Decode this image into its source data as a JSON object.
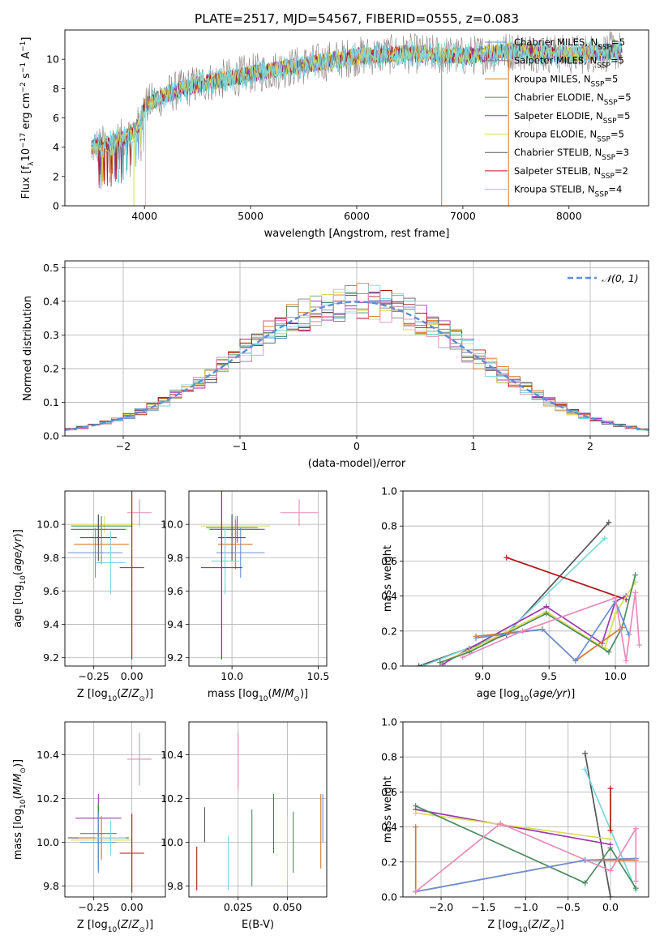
{
  "title": "PLATE=2517, MJD=54567, FIBERID=0555, z=0.083",
  "colors": {
    "MILES_C": "#6a8fd6",
    "MILES_S": "#8c7d7d",
    "MILES_K": "#d6792a",
    "ELODIE_C": "#4f8a60",
    "ELODIE_S": "#9b38b0",
    "ELODIE_K": "#d9dd55",
    "STELIB_C": "#555555",
    "STELIB_S": "#b01818",
    "STELIB_K": "#7ad6dc",
    "grid": "#b0b0b0",
    "gauss": "#5b8ed6",
    "pink": "#e88aba"
  },
  "chart_data": [
    {
      "id": "spectrum",
      "type": "line",
      "xlabel": "wavelength [Angstrom, rest frame]",
      "ylabel": "Flux [f",
      "xlim": [
        3250,
        8750
      ],
      "ylim": [
        0,
        12
      ],
      "xticks": [
        4000,
        5000,
        6000,
        7000,
        8000
      ],
      "yticks": [
        0,
        2,
        4,
        6,
        8,
        10
      ],
      "grid": false,
      "legend_placement": "right",
      "legend": [
        {
          "label": "Chabrier MILES, N",
          "n": "=5",
          "key": "MILES_C"
        },
        {
          "label": "Salpeter MILES, N",
          "n": "=5",
          "key": "MILES_S"
        },
        {
          "label": "Kroupa MILES, N",
          "n": "=5",
          "key": "MILES_K"
        },
        {
          "label": "Chabrier ELODIE, N",
          "n": "=5",
          "key": "ELODIE_C"
        },
        {
          "label": "Salpeter ELODIE, N",
          "n": "=5",
          "key": "ELODIE_S"
        },
        {
          "label": "Kroupa ELODIE, N",
          "n": "=5",
          "key": "ELODIE_K"
        },
        {
          "label": "Chabrier STELIB, N",
          "n": "=3",
          "key": "STELIB_C"
        },
        {
          "label": "Salpeter STELIB, N",
          "n": "=2",
          "key": "STELIB_S"
        },
        {
          "label": "Kroupa STELIB, N",
          "n": "=4",
          "key": "STELIB_K"
        }
      ],
      "continuum": [
        [
          3500,
          4.0
        ],
        [
          3650,
          4.2
        ],
        [
          3800,
          4.6
        ],
        [
          3950,
          5.5
        ],
        [
          4000,
          6.8
        ],
        [
          4200,
          7.6
        ],
        [
          4500,
          8.3
        ],
        [
          5000,
          9.0
        ],
        [
          5500,
          9.6
        ],
        [
          6000,
          10.2
        ],
        [
          6500,
          10.4
        ],
        [
          7000,
          10.2
        ],
        [
          7500,
          10.6
        ],
        [
          8000,
          10.3
        ],
        [
          8500,
          10.6
        ]
      ],
      "spikes": [
        {
          "x": 3900,
          "y": 0
        },
        {
          "x": 4010,
          "y": 0
        },
        {
          "x": 6800,
          "y": 0
        },
        {
          "x": 7430,
          "y": 0
        }
      ]
    },
    {
      "id": "residual-hist",
      "type": "line",
      "xlabel": "(data-model)/error",
      "ylabel": "Normed distribution",
      "xlim": [
        -2.5,
        2.5
      ],
      "ylim": [
        0,
        0.52
      ],
      "xticks": [
        -2,
        -1,
        0,
        1,
        2
      ],
      "yticks": [
        0.0,
        0.1,
        0.2,
        0.3,
        0.4,
        0.5
      ],
      "grid": true,
      "legend_placement": "top-right",
      "gauss_legend": "𝒩(0, 1)"
    },
    {
      "id": "age-vs-Z",
      "type": "scatter",
      "xlabel": "Z [log",
      "ylabel": "age  [log",
      "xlim": [
        -0.44,
        0.22
      ],
      "ylim": [
        9.15,
        10.2
      ],
      "xticks": [
        -0.25,
        0.0
      ],
      "yticks": [
        9.2,
        9.4,
        9.6,
        9.8,
        10.0
      ],
      "points": [
        {
          "x": 0.05,
          "y": 10.07,
          "dx": 0.08,
          "dy": 0.08,
          "key": "pink"
        },
        {
          "x": -0.18,
          "y": 10.0,
          "dx": 0.22,
          "dy": 0.05,
          "key": "ELODIE_K"
        },
        {
          "x": -0.2,
          "y": 9.99,
          "dx": 0.2,
          "dy": 0.06,
          "key": "ELODIE_C"
        },
        {
          "x": -0.22,
          "y": 9.97,
          "dx": 0.18,
          "dy": 0.08,
          "key": "ELODIE_S"
        },
        {
          "x": -0.2,
          "y": 9.88,
          "dx": 0.18,
          "dy": 0.12,
          "key": "MILES_K"
        },
        {
          "x": -0.24,
          "y": 9.83,
          "dx": 0.18,
          "dy": 0.15,
          "key": "MILES_C"
        },
        {
          "x": -0.22,
          "y": 9.92,
          "dx": 0.12,
          "dy": 0.14,
          "key": "STELIB_C"
        },
        {
          "x": -0.14,
          "y": 9.77,
          "dx": 0.1,
          "dy": 0.19,
          "key": "STELIB_K"
        },
        {
          "x": 0.0,
          "y": 9.74,
          "dx": 0.08,
          "dy": 0.55,
          "key": "STELIB_S"
        }
      ]
    },
    {
      "id": "age-vs-mass",
      "type": "scatter",
      "xlabel": "mass [log",
      "ylabel": "",
      "xlim": [
        9.75,
        10.55
      ],
      "ylim": [
        9.15,
        10.2
      ],
      "xticks": [
        10.0,
        10.5
      ],
      "yticks": [
        9.2,
        9.4,
        9.6,
        9.8,
        10.0
      ],
      "points": [
        {
          "x": 10.39,
          "y": 10.07,
          "dx": 0.11,
          "dy": 0.08,
          "key": "pink"
        },
        {
          "x": 10.02,
          "y": 9.99,
          "dx": 0.2,
          "dy": 0.06,
          "key": "ELODIE_K"
        },
        {
          "x": 10.0,
          "y": 9.98,
          "dx": 0.15,
          "dy": 0.08,
          "key": "ELODIE_C"
        },
        {
          "x": 10.03,
          "y": 9.97,
          "dx": 0.16,
          "dy": 0.08,
          "key": "ELODIE_S"
        },
        {
          "x": 10.02,
          "y": 9.88,
          "dx": 0.1,
          "dy": 0.15,
          "key": "MILES_K"
        },
        {
          "x": 10.05,
          "y": 9.83,
          "dx": 0.14,
          "dy": 0.15,
          "key": "MILES_C"
        },
        {
          "x": 10.0,
          "y": 9.92,
          "dx": 0.08,
          "dy": 0.14,
          "key": "STELIB_C"
        },
        {
          "x": 9.96,
          "y": 9.78,
          "dx": 0.08,
          "dy": 0.2,
          "key": "STELIB_K"
        },
        {
          "x": 9.94,
          "y": 9.74,
          "dx": 0.12,
          "dy": 0.55,
          "key": "STELIB_S"
        }
      ]
    },
    {
      "id": "weight-vs-age",
      "type": "line",
      "xlabel": "age  [log",
      "ylabel": "mass weight",
      "xlim": [
        8.4,
        10.25
      ],
      "ylim": [
        0,
        1.0
      ],
      "xticks": [
        9.0,
        9.5,
        10.0
      ],
      "yticks": [
        0.0,
        0.2,
        0.4,
        0.6,
        0.8,
        1.0
      ],
      "grid": true,
      "series": [
        {
          "key": "STELIB_C",
          "points": [
            [
              8.52,
              0.0
            ],
            [
              9.18,
              0.18
            ],
            [
              9.95,
              0.82
            ]
          ]
        },
        {
          "key": "STELIB_K",
          "points": [
            [
              8.55,
              0.0
            ],
            [
              9.18,
              0.19
            ],
            [
              9.92,
              0.73
            ]
          ]
        },
        {
          "key": "STELIB_S",
          "points": [
            [
              9.18,
              0.62
            ],
            [
              10.08,
              0.38
            ]
          ]
        },
        {
          "key": "ELODIE_S",
          "points": [
            [
              8.7,
              0.01
            ],
            [
              8.9,
              0.1
            ],
            [
              9.48,
              0.34
            ],
            [
              9.9,
              0.13
            ],
            [
              10.0,
              0.37
            ],
            [
              10.08,
              0.4
            ]
          ]
        },
        {
          "key": "ELODIE_K",
          "points": [
            [
              8.68,
              0.02
            ],
            [
              8.9,
              0.09
            ],
            [
              9.48,
              0.31
            ],
            [
              9.92,
              0.1
            ],
            [
              10.0,
              0.3
            ],
            [
              10.15,
              0.48
            ]
          ]
        },
        {
          "key": "ELODIE_C",
          "points": [
            [
              8.68,
              0.02
            ],
            [
              8.9,
              0.08
            ],
            [
              9.48,
              0.3
            ],
            [
              9.95,
              0.08
            ],
            [
              10.05,
              0.22
            ],
            [
              10.15,
              0.52
            ]
          ]
        },
        {
          "key": "MILES_K",
          "points": [
            [
              8.95,
              0.17
            ],
            [
              9.45,
              0.21
            ],
            [
              9.7,
              0.03
            ],
            [
              10.05,
              0.22
            ]
          ]
        },
        {
          "key": "MILES_C",
          "points": [
            [
              8.95,
              0.16
            ],
            [
              9.45,
              0.21
            ],
            [
              9.7,
              0.03
            ],
            [
              10.0,
              0.37
            ],
            [
              10.1,
              0.18
            ]
          ]
        },
        {
          "key": "pink",
          "points": [
            [
              8.85,
              0.05
            ],
            [
              9.3,
              0.2
            ],
            [
              10.0,
              0.39
            ],
            [
              10.08,
              0.03
            ],
            [
              10.15,
              0.42
            ],
            [
              10.18,
              0.12
            ]
          ]
        }
      ]
    },
    {
      "id": "mass-vs-Z",
      "type": "scatter",
      "xlabel": "Z [log",
      "ylabel": "mass [log",
      "xlim": [
        -0.44,
        0.22
      ],
      "ylim": [
        9.75,
        10.55
      ],
      "xticks": [
        -0.25,
        0.0
      ],
      "yticks": [
        9.8,
        10.0,
        10.2,
        10.4
      ],
      "points": [
        {
          "x": 0.05,
          "y": 10.38,
          "dx": 0.08,
          "dy": 0.12,
          "key": "pink"
        },
        {
          "x": -0.22,
          "y": 10.11,
          "dx": 0.15,
          "dy": 0.11,
          "key": "ELODIE_S"
        },
        {
          "x": -0.22,
          "y": 10.02,
          "dx": 0.2,
          "dy": 0.15,
          "key": "STELIB_C"
        },
        {
          "x": -0.2,
          "y": 10.01,
          "dx": 0.2,
          "dy": 0.09,
          "key": "ELODIE_K"
        },
        {
          "x": -0.2,
          "y": 10.02,
          "dx": 0.15,
          "dy": 0.1,
          "key": "MILES_K"
        },
        {
          "x": -0.22,
          "y": 10.04,
          "dx": 0.12,
          "dy": 0.14,
          "key": "ELODIE_C"
        },
        {
          "x": -0.22,
          "y": 10.0,
          "dx": 0.12,
          "dy": 0.14,
          "key": "MILES_C"
        },
        {
          "x": -0.14,
          "y": 10.02,
          "dx": 0.1,
          "dy": 0.08,
          "key": "STELIB_K"
        },
        {
          "x": 0.0,
          "y": 9.95,
          "dx": 0.08,
          "dy": 0.18,
          "key": "STELIB_S"
        }
      ]
    },
    {
      "id": "mass-vs-ebv",
      "type": "scatter",
      "xlabel": "E(B-V)",
      "ylabel": "",
      "xlim": [
        0.0,
        0.07
      ],
      "ylim": [
        9.75,
        10.55
      ],
      "xticks": [
        0.025,
        0.05
      ],
      "yticks": [
        9.8,
        10.0,
        10.2,
        10.4
      ],
      "vlines": [
        {
          "x": 0.004,
          "y0": 9.78,
          "y1": 9.98,
          "key": "STELIB_S"
        },
        {
          "x": 0.008,
          "y0": 10.0,
          "y1": 10.16,
          "key": "STELIB_C"
        },
        {
          "x": 0.02,
          "y0": 9.78,
          "y1": 10.03,
          "key": "STELIB_K"
        },
        {
          "x": 0.025,
          "y0": 10.24,
          "y1": 10.5,
          "key": "pink"
        },
        {
          "x": 0.032,
          "y0": 9.8,
          "y1": 10.15,
          "key": "ELODIE_C"
        },
        {
          "x": 0.043,
          "y0": 9.95,
          "y1": 10.22,
          "key": "ELODIE_S"
        },
        {
          "x": 0.05,
          "y0": 9.82,
          "y1": 10.12,
          "key": "ELODIE_K"
        },
        {
          "x": 0.053,
          "y0": 9.86,
          "y1": 10.14,
          "key": "ELODIE_C"
        },
        {
          "x": 0.067,
          "y0": 9.88,
          "y1": 10.22,
          "key": "MILES_K"
        },
        {
          "x": 0.068,
          "y0": 10.0,
          "y1": 10.22,
          "key": "MILES_C"
        }
      ]
    },
    {
      "id": "weight-vs-Z",
      "type": "line",
      "xlabel": "Z [log",
      "ylabel": "mass weight",
      "xlim": [
        -2.45,
        0.45
      ],
      "ylim": [
        0,
        1.0
      ],
      "xticks": [
        -2.0,
        -1.5,
        -1.0,
        -0.5,
        0.0
      ],
      "yticks": [
        0.0,
        0.2,
        0.4,
        0.6,
        0.8,
        1.0
      ],
      "grid": true,
      "series": [
        {
          "key": "STELIB_C",
          "points": [
            [
              -0.3,
              0.82
            ],
            [
              0.0,
              0.0
            ]
          ]
        },
        {
          "key": "STELIB_K",
          "points": [
            [
              -0.3,
              0.73
            ],
            [
              0.3,
              0.04
            ]
          ]
        },
        {
          "key": "STELIB_S",
          "points": [
            [
              0.0,
              0.62
            ],
            [
              0.0,
              0.38
            ]
          ]
        },
        {
          "key": "ELODIE_S",
          "points": [
            [
              -2.3,
              0.5
            ],
            [
              0.0,
              0.3
            ]
          ]
        },
        {
          "key": "ELODIE_K",
          "points": [
            [
              -2.3,
              0.48
            ],
            [
              0.0,
              0.33
            ]
          ]
        },
        {
          "key": "ELODIE_C",
          "points": [
            [
              -2.3,
              0.52
            ],
            [
              -0.3,
              0.08
            ],
            [
              0.0,
              0.28
            ],
            [
              0.3,
              0.05
            ]
          ]
        },
        {
          "key": "MILES_K",
          "points": [
            [
              -2.3,
              0.4
            ],
            [
              -2.3,
              0.03
            ],
            [
              -0.3,
              0.21
            ],
            [
              0.3,
              0.21
            ]
          ]
        },
        {
          "key": "MILES_C",
          "points": [
            [
              -2.3,
              0.03
            ],
            [
              -0.3,
              0.21
            ],
            [
              0.3,
              0.22
            ]
          ]
        },
        {
          "key": "pink",
          "points": [
            [
              -2.3,
              0.03
            ],
            [
              -1.3,
              0.42
            ],
            [
              0.0,
              0.15
            ],
            [
              0.3,
              0.39
            ],
            [
              0.3,
              0.09
            ]
          ]
        }
      ]
    }
  ]
}
